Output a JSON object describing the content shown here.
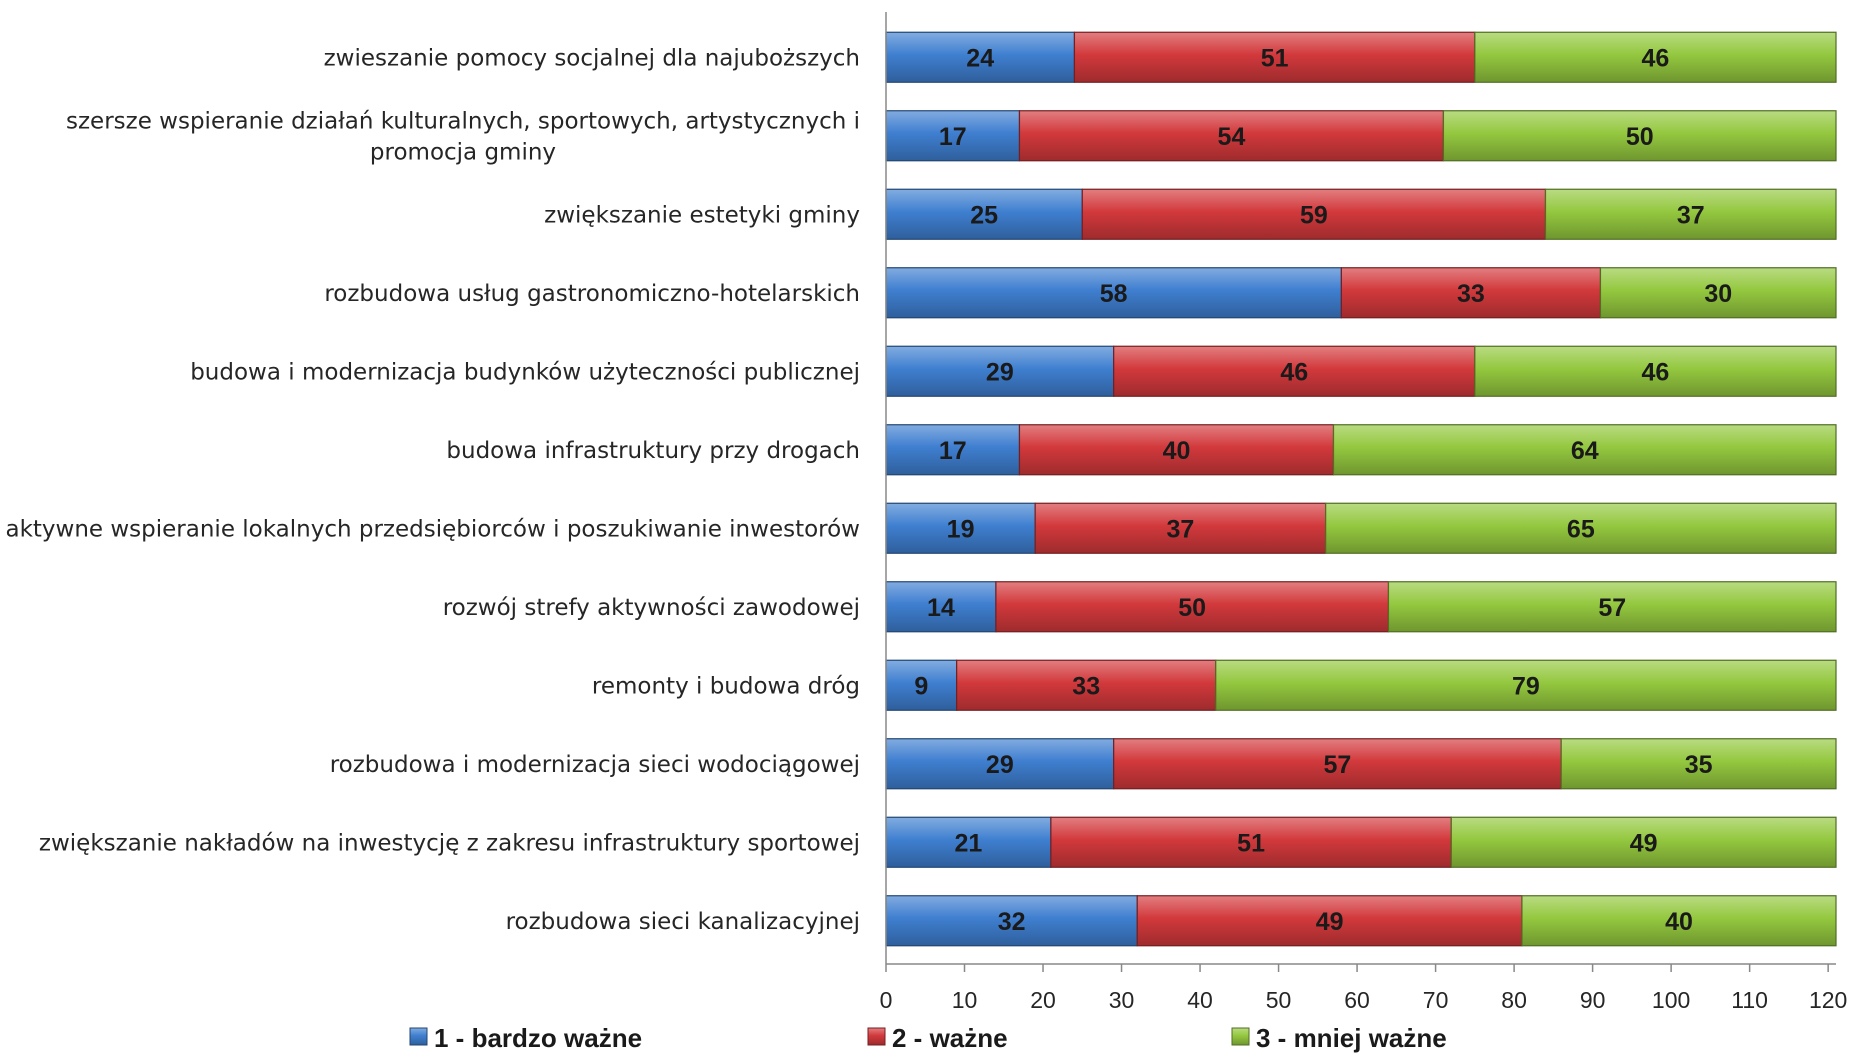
{
  "chart_data": {
    "type": "bar",
    "orientation": "horizontal",
    "stacked": true,
    "categories": [
      "zwieszanie pomocy socjalnej dla najuboższych",
      "szersze wspieranie działań kulturalnych, sportowych, artystycznych i promocja gminy",
      "zwiększanie estetyki gminy",
      "rozbudowa usług gastronomiczno-hotelarskich",
      "budowa i modernizacja budynków użyteczności publicznej",
      "budowa infrastruktury przy drogach",
      "aktywne wspieranie lokalnych przedsiębiorców i poszukiwanie inwestorów",
      "rozwój strefy aktywności zawodowej",
      "remonty i budowa dróg",
      "rozbudowa i modernizacja sieci wodociągowej",
      "zwiększanie nakładów na inwestycję z zakresu infrastruktury sportowej",
      "rozbudowa sieci kanalizacyjnej"
    ],
    "series": [
      {
        "name": "1 - bardzo ważne",
        "color": "#3f7fd0",
        "values": [
          24,
          17,
          25,
          58,
          29,
          17,
          19,
          14,
          9,
          29,
          21,
          32
        ]
      },
      {
        "name": "2 - ważne",
        "color": "#d2393c",
        "values": [
          51,
          54,
          59,
          33,
          46,
          40,
          37,
          50,
          33,
          57,
          51,
          49
        ]
      },
      {
        "name": "3 - mniej ważne",
        "color": "#94c83f",
        "values": [
          46,
          50,
          37,
          30,
          46,
          64,
          65,
          57,
          79,
          35,
          49,
          40
        ]
      }
    ],
    "xlim": [
      0,
      121
    ],
    "xticks": [
      0,
      10,
      20,
      30,
      40,
      50,
      60,
      70,
      80,
      90,
      100,
      110,
      120
    ],
    "grid": false,
    "legend_position": "bottom"
  }
}
